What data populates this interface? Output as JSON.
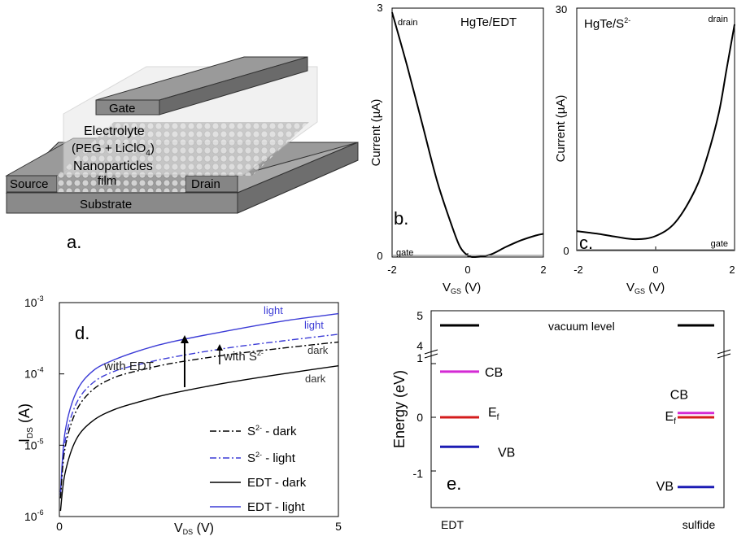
{
  "panel_a": {
    "panel_label": "a.",
    "gate": "Gate",
    "electrolyte": "Electrolyte",
    "electrolyte_comp": "(PEG + LiClO",
    "electrolyte_sub": "4",
    "electrolyte_close": ")",
    "nanoparticles": "Nanoparticles",
    "film": "film",
    "source": "Source",
    "drain": "Drain",
    "substrate": "Substrate"
  },
  "chart_data": [
    {
      "panel": "b.",
      "type": "line",
      "title": "HgTe/EDT",
      "ylabel": "Current (µA)",
      "xlabel_main": "V",
      "xlabel_sub": "GS",
      "xlabel_unit": " (V)",
      "xlim": [
        -2,
        2
      ],
      "ylim": [
        0,
        3
      ],
      "xticks": [
        "-2",
        "0",
        "2"
      ],
      "yticks": [
        "0",
        "3"
      ],
      "series": [
        {
          "name": "drain",
          "x": [
            -2,
            -1.6,
            -1.2,
            -0.8,
            -0.4,
            -0.2,
            0,
            0.2,
            0.6,
            1,
            1.4,
            1.8,
            2
          ],
          "y": [
            2.95,
            2.3,
            1.6,
            0.9,
            0.35,
            0.12,
            0.02,
            0.0,
            0.03,
            0.12,
            0.2,
            0.26,
            0.28
          ]
        },
        {
          "name": "gate",
          "x": [
            -2,
            2
          ],
          "y": [
            0.02,
            0.02
          ]
        }
      ]
    },
    {
      "panel": "c.",
      "type": "line",
      "title": "HgTe/S",
      "title_sup": "2-",
      "ylabel": "Current (µA)",
      "xlabel_main": "V",
      "xlabel_sub": "GS",
      "xlabel_unit": " (V)",
      "xlim": [
        -2,
        2
      ],
      "ylim": [
        0,
        30
      ],
      "xticks": [
        "-2",
        "0",
        "2"
      ],
      "yticks": [
        "0",
        "30"
      ],
      "series": [
        {
          "name": "drain",
          "x": [
            -2,
            -1.5,
            -1,
            -0.5,
            0,
            0.5,
            1,
            1.3,
            1.6,
            1.8,
            2
          ],
          "y": [
            2.4,
            2.1,
            1.7,
            1.4,
            1.8,
            3.5,
            7.5,
            11.5,
            17,
            22.5,
            28
          ]
        },
        {
          "name": "gate",
          "x": [
            -2,
            2
          ],
          "y": [
            0.1,
            0.1
          ]
        }
      ]
    },
    {
      "panel": "d.",
      "type": "line",
      "yscale": "log",
      "ylabel_main": "I",
      "ylabel_sub": "DS",
      "ylabel_unit": " (A)",
      "xlabel_main": "V",
      "xlabel_sub": "DS",
      "xlabel_unit": " (V)",
      "xlim": [
        0,
        5
      ],
      "ylim": [
        1e-06,
        0.001
      ],
      "xticks": [
        "0",
        "5"
      ],
      "yticks": [
        {
          "base": "10",
          "exp": "-3",
          "v": 0.001
        },
        {
          "base": "10",
          "exp": "-4",
          "v": 0.0001
        },
        {
          "base": "10",
          "exp": "-5",
          "v": 1e-05
        },
        {
          "base": "10",
          "exp": "-6",
          "v": 1e-06
        }
      ],
      "series": [
        {
          "name": "EDT - light",
          "x": [
            0.02,
            0.1,
            0.3,
            0.6,
            1,
            1.5,
            2,
            3,
            4,
            5
          ],
          "y": [
            2.2e-06,
            1.5e-05,
            5.5e-05,
            0.00011,
            0.00016,
            0.00022,
            0.00028,
            0.0004,
            0.00055,
            0.0007
          ]
        },
        {
          "name": "S2- - light",
          "x": [
            0.02,
            0.1,
            0.3,
            0.6,
            1,
            1.5,
            2,
            3,
            4,
            5
          ],
          "y": [
            2e-06,
            1.1e-05,
            3.8e-05,
            7.5e-05,
            0.00011,
            0.00014,
            0.00017,
            0.00023,
            0.00029,
            0.00036
          ]
        },
        {
          "name": "S2- - dark",
          "x": [
            0.02,
            0.1,
            0.3,
            0.6,
            1,
            1.5,
            2,
            3,
            4,
            5
          ],
          "y": [
            1.8e-06,
            9e-06,
            3e-05,
            6e-05,
            9e-05,
            0.000115,
            0.00014,
            0.000185,
            0.00023,
            0.00028
          ]
        },
        {
          "name": "EDT - dark",
          "x": [
            0.02,
            0.1,
            0.3,
            0.6,
            1,
            1.5,
            2,
            3,
            4,
            5
          ],
          "y": [
            1.2e-06,
            4e-06,
            1.2e-05,
            2.2e-05,
            3.2e-05,
            4.2e-05,
            5.3e-05,
            7.5e-05,
            0.0001,
            0.00013
          ]
        }
      ],
      "curve_labels": {
        "light_top": "light",
        "light_mid": "light",
        "dark_mid": "dark",
        "dark_low": "dark"
      },
      "annotations": {
        "with_edt": "with EDT",
        "with_s_main": "with S",
        "with_s_sup": "2-"
      },
      "legend": [
        {
          "label_main": "S",
          "label_sup": "2-",
          "label_rest": " - dark",
          "color": "#000000",
          "dash": "8,3,2,3"
        },
        {
          "label_main": "S",
          "label_sup": "2-",
          "label_rest": " - light",
          "color": "#3b3bd6",
          "dash": "8,3,2,3"
        },
        {
          "label_main": "EDT - dark",
          "label_sup": "",
          "label_rest": "",
          "color": "#000000",
          "dash": ""
        },
        {
          "label_main": "EDT - light",
          "label_sup": "",
          "label_rest": "",
          "color": "#3b3bd6",
          "dash": ""
        }
      ]
    },
    {
      "panel": "e.",
      "type": "diagram",
      "ylabel": "Energy (eV)",
      "yticks": [
        "5",
        "4",
        "1",
        "0",
        "-1"
      ],
      "xticks": [
        "EDT",
        "sulfide"
      ],
      "vacuum_label": "vacuum level",
      "levels": {
        "EDT": [
          {
            "name": "CB",
            "value": 0.85,
            "color": "#d42ad4"
          },
          {
            "name": "E",
            "sub": "f",
            "value": 0.0,
            "color": "#d41c1c"
          },
          {
            "name": "VB",
            "value": -0.55,
            "color": "#1c1cb4"
          }
        ],
        "sulfide": [
          {
            "name": "CB",
            "value": 0.08,
            "color": "#d42ad4"
          },
          {
            "name": "E",
            "sub": "f",
            "value": 0.0,
            "color": "#d41c1c"
          },
          {
            "name": "VB",
            "value": -1.3,
            "color": "#1c1cb4"
          }
        ]
      }
    }
  ]
}
